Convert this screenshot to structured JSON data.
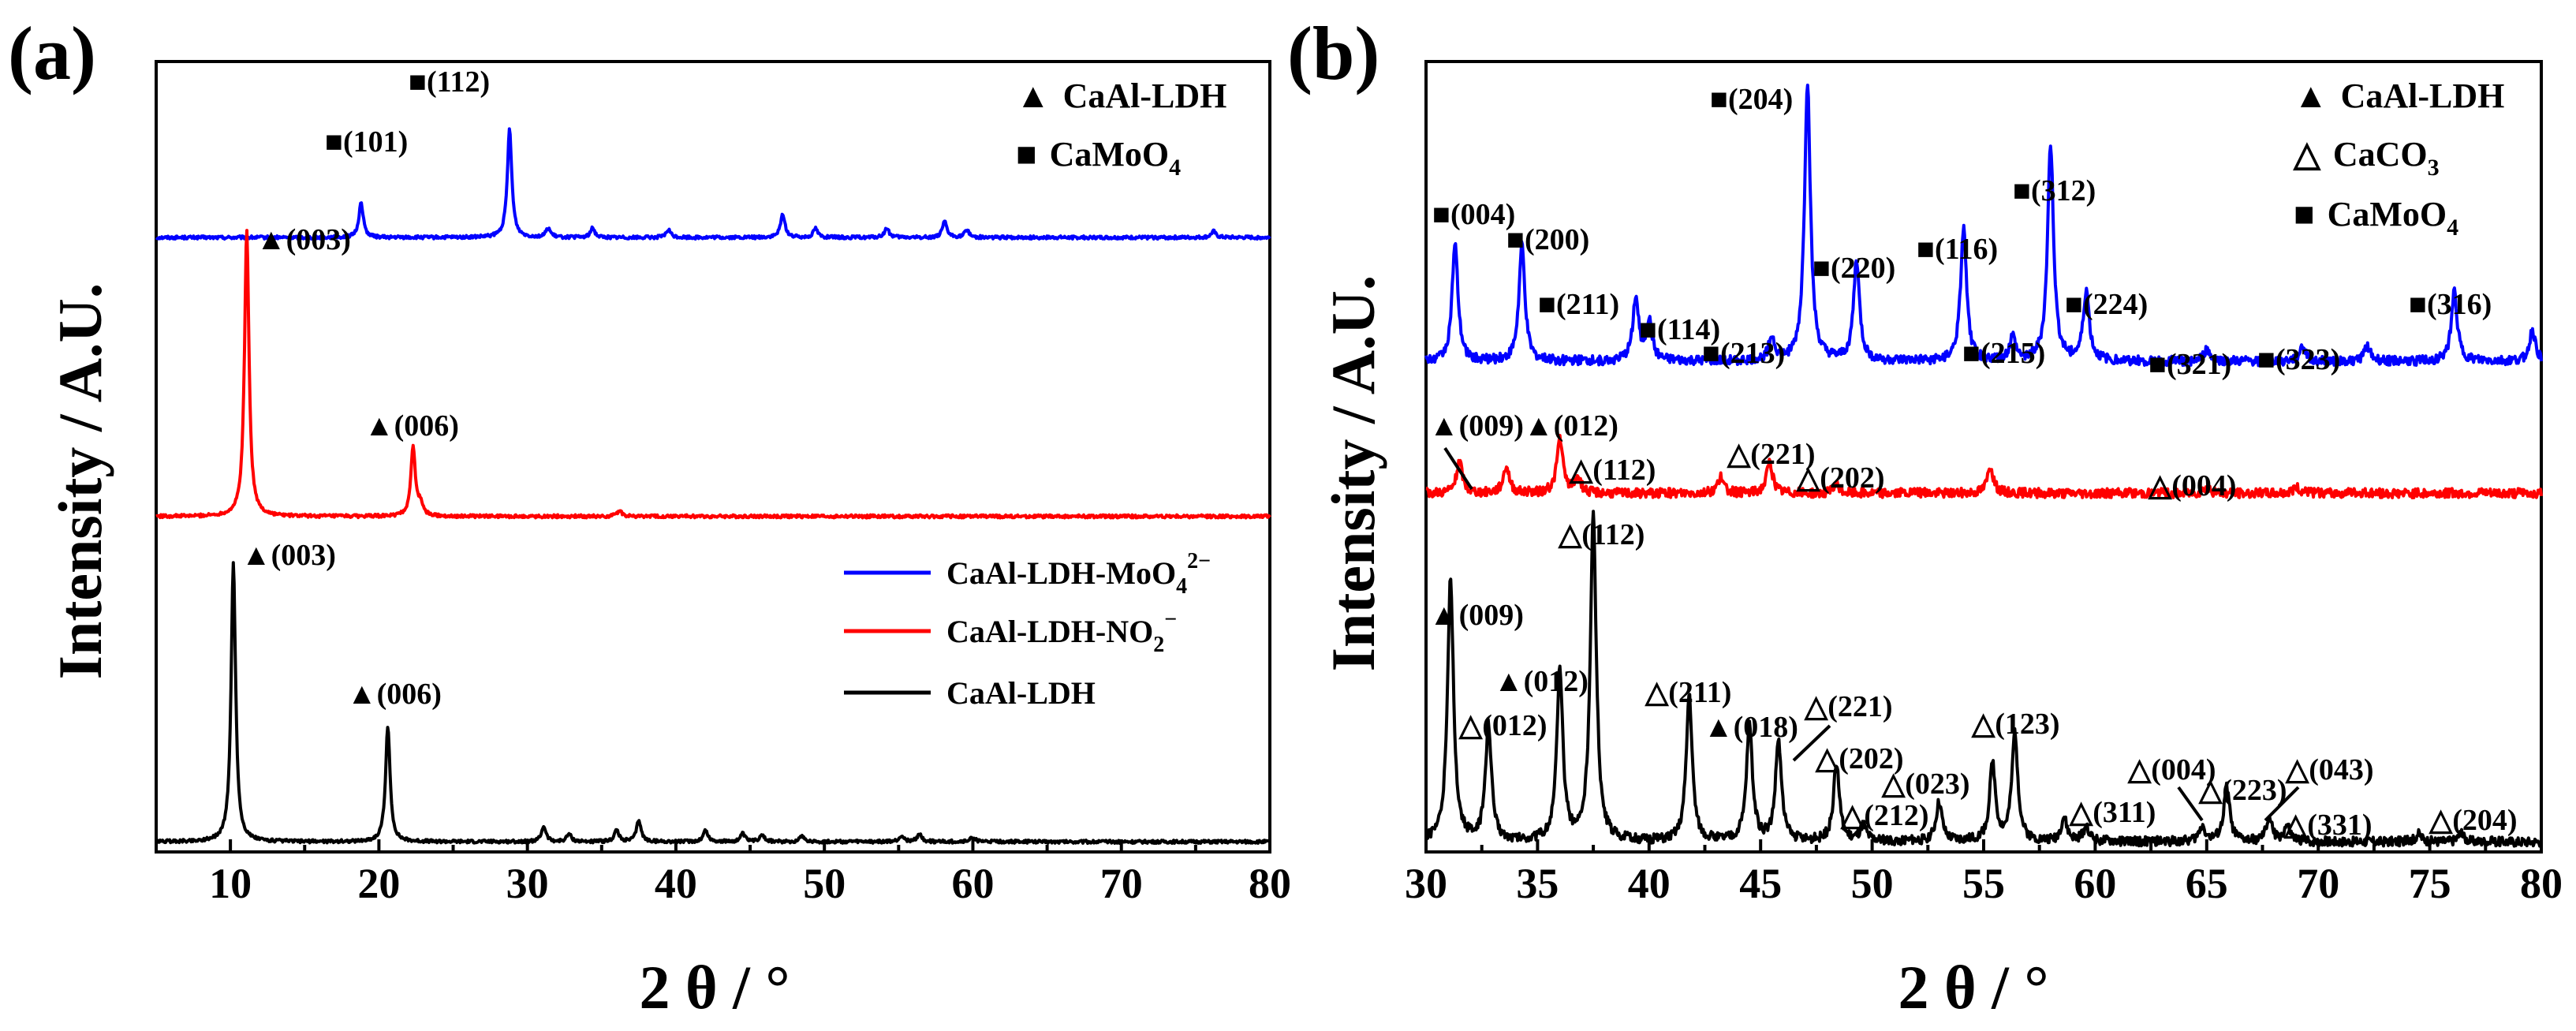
{
  "chart_data": [
    {
      "panel": "(a)",
      "type": "line",
      "xlabel": "2 θ / °",
      "ylabel": "Intensity / A.U.",
      "xlim": [
        5,
        80
      ],
      "xticks": [
        10,
        20,
        30,
        40,
        50,
        60,
        70,
        80
      ],
      "series": [
        {
          "name": "CaAl-LDH-MoO4 2−",
          "color": "#0000ff",
          "offset": 0.78,
          "peaks": [
            [
              18.8,
              0.045
            ],
            [
              28.8,
              0.14
            ],
            [
              31.4,
              0.012
            ],
            [
              34.4,
              0.012
            ],
            [
              39.5,
              0.01
            ],
            [
              47.2,
              0.03
            ],
            [
              49.4,
              0.012
            ],
            [
              54.2,
              0.012
            ],
            [
              58.1,
              0.02
            ],
            [
              59.6,
              0.01
            ],
            [
              76.2,
              0.008
            ]
          ]
        },
        {
          "name": "CaAl-LDH-NO2 −",
          "color": "#ff0000",
          "offset": 0.42,
          "peaks": [
            [
              11.1,
              0.37
            ],
            [
              22.3,
              0.09
            ],
            [
              22.8,
              0.015
            ],
            [
              36.2,
              0.008
            ]
          ]
        },
        {
          "name": "CaAl-LDH",
          "color": "#000000",
          "offset": 0.0,
          "peaks": [
            [
              10.2,
              0.36
            ],
            [
              20.6,
              0.15
            ],
            [
              31.1,
              0.02
            ],
            [
              32.8,
              0.01
            ],
            [
              36.0,
              0.015
            ],
            [
              37.5,
              0.028
            ],
            [
              42.0,
              0.015
            ],
            [
              44.5,
              0.01
            ],
            [
              45.8,
              0.01
            ],
            [
              48.5,
              0.008
            ],
            [
              55.2,
              0.008
            ],
            [
              56.4,
              0.01
            ],
            [
              60.0,
              0.006
            ]
          ]
        }
      ],
      "annotations": [
        {
          "text": "■(112)",
          "series": "blue"
        },
        {
          "text": "■(101)",
          "series": "blue"
        },
        {
          "text": "▲(003)",
          "series": "red"
        },
        {
          "text": "▲(006)",
          "series": "red"
        },
        {
          "text": "▲(003)",
          "series": "black"
        },
        {
          "text": "▲(006)",
          "series": "black"
        }
      ],
      "phase_legend": [
        {
          "symbol": "▲",
          "label": "CaAl-LDH"
        },
        {
          "symbol": "■",
          "label": "CaMoO",
          "subscript": "4"
        }
      ],
      "legend": [
        {
          "label": "CaAl-LDH-MoO",
          "sub": "4",
          "sup": "2−",
          "color": "#0000ff"
        },
        {
          "label": "CaAl-LDH-NO",
          "sub": "2",
          "sup": "−",
          "color": "#ff0000"
        },
        {
          "label": "CaAl-LDH",
          "sub": "",
          "sup": "",
          "color": "#000000"
        }
      ]
    },
    {
      "panel": "(b)",
      "type": "line",
      "xlabel": "2 θ / °",
      "ylabel": "Intensity / A.U.",
      "xlim": [
        30,
        80
      ],
      "xticks": [
        30,
        35,
        40,
        45,
        50,
        55,
        60,
        65,
        70,
        75,
        80
      ],
      "series": [
        {
          "name": "CaAl-LDH-MoO4 2−",
          "color": "#0000ff",
          "offset": 0.62,
          "peaks": [
            [
              31.3,
              0.15
            ],
            [
              34.3,
              0.15
            ],
            [
              39.4,
              0.08
            ],
            [
              40.0,
              0.05
            ],
            [
              45.5,
              0.03
            ],
            [
              47.1,
              0.36
            ],
            [
              49.3,
              0.13
            ],
            [
              54.1,
              0.17
            ],
            [
              56.3,
              0.03
            ],
            [
              58.0,
              0.28
            ],
            [
              59.6,
              0.09
            ],
            [
              65.0,
              0.015
            ],
            [
              69.3,
              0.02
            ],
            [
              72.2,
              0.02
            ],
            [
              76.1,
              0.09
            ],
            [
              79.6,
              0.04
            ]
          ]
        },
        {
          "name": "CaAl-LDH-NO2 −",
          "color": "#ff0000",
          "offset": 0.45,
          "peaks": [
            [
              31.5,
              0.04
            ],
            [
              33.6,
              0.035
            ],
            [
              36.0,
              0.07
            ],
            [
              36.8,
              0.02
            ],
            [
              43.2,
              0.02
            ],
            [
              45.4,
              0.04
            ],
            [
              48.4,
              0.01
            ],
            [
              55.3,
              0.035
            ],
            [
              65.0,
              0.008
            ],
            [
              69.0,
              0.008
            ]
          ]
        },
        {
          "name": "CaAl-LDH",
          "color": "#000000",
          "offset": 0.0,
          "peaks": [
            [
              31.1,
              0.34
            ],
            [
              32.8,
              0.15
            ],
            [
              36.0,
              0.22
            ],
            [
              37.5,
              0.42
            ],
            [
              41.8,
              0.19
            ],
            [
              44.5,
              0.15
            ],
            [
              45.8,
              0.13
            ],
            [
              48.4,
              0.1
            ],
            [
              49.6,
              0.02
            ],
            [
              53.0,
              0.05
            ],
            [
              55.4,
              0.1
            ],
            [
              56.4,
              0.14
            ],
            [
              58.6,
              0.03
            ],
            [
              59.6,
              0.02
            ],
            [
              64.8,
              0.02
            ],
            [
              65.9,
              0.07
            ],
            [
              67.8,
              0.03
            ],
            [
              68.6,
              0.02
            ],
            [
              74.5,
              0.01
            ],
            [
              76.4,
              0.01
            ]
          ]
        }
      ],
      "annotations": [
        {
          "text": "■(204)"
        },
        {
          "text": "■(004)"
        },
        {
          "text": "■(200)"
        },
        {
          "text": "■(211)"
        },
        {
          "text": "■(114)"
        },
        {
          "text": "■(213)"
        },
        {
          "text": "■(220)"
        },
        {
          "text": "■(116)"
        },
        {
          "text": "■(312)"
        },
        {
          "text": "■(215)"
        },
        {
          "text": "■(224)"
        },
        {
          "text": "■(321)"
        },
        {
          "text": "■(323)"
        },
        {
          "text": "■(316)"
        },
        {
          "text": "▲(009)"
        },
        {
          "text": "▲(012)"
        },
        {
          "text": "△(112)"
        },
        {
          "text": "△(221)"
        },
        {
          "text": "△(202)"
        },
        {
          "text": "△(004)"
        },
        {
          "text": "△(112)"
        },
        {
          "text": "▲(009)"
        },
        {
          "text": "▲(012)"
        },
        {
          "text": "△(012)"
        },
        {
          "text": "△(211)"
        },
        {
          "text": "▲(018)"
        },
        {
          "text": "△(221)"
        },
        {
          "text": "△(202)"
        },
        {
          "text": "△(023)"
        },
        {
          "text": "△(212)"
        },
        {
          "text": "△(123)"
        },
        {
          "text": "△(311)"
        },
        {
          "text": "△(004)"
        },
        {
          "text": "△(223)"
        },
        {
          "text": "△(043)"
        },
        {
          "text": "△(331)"
        },
        {
          "text": "△(204)"
        }
      ],
      "phase_legend": [
        {
          "symbol": "▲",
          "label": "CaAl-LDH"
        },
        {
          "symbol": "△",
          "label": "CaCO",
          "subscript": "3"
        },
        {
          "symbol": "■",
          "label": "CaMoO",
          "subscript": "4"
        }
      ]
    }
  ]
}
